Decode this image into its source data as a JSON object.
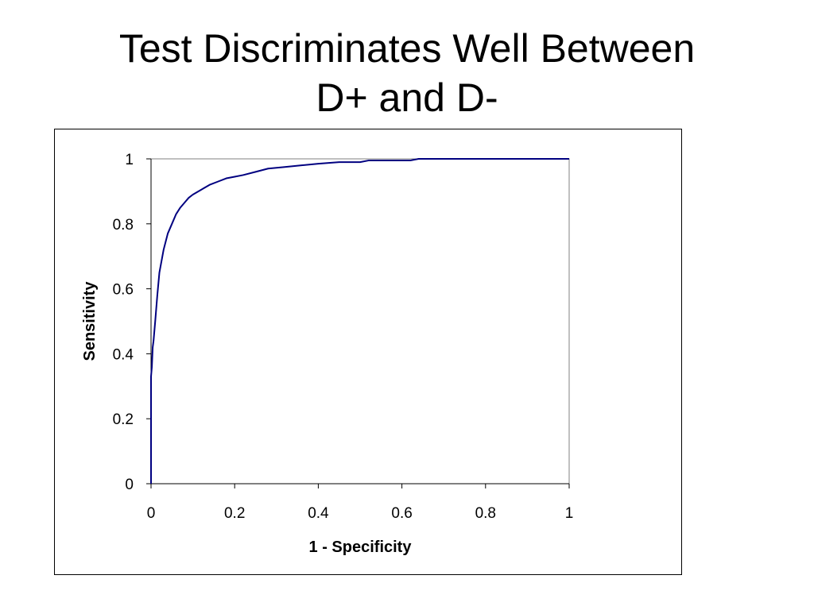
{
  "slide": {
    "title_line1": "Test Discriminates Well Between",
    "title_line2": "D+ and D-"
  },
  "chart_data": {
    "type": "line",
    "title": "",
    "xlabel": "1 - Specificity",
    "ylabel": "Sensitivity",
    "xlim": [
      0,
      1
    ],
    "ylim": [
      0,
      1
    ],
    "x_ticks": [
      "0",
      "0.2",
      "0.4",
      "0.6",
      "0.8",
      "1"
    ],
    "y_ticks": [
      "0",
      "0.2",
      "0.4",
      "0.6",
      "0.8",
      "1"
    ],
    "grid": false,
    "legend": "none",
    "series": [
      {
        "color": "#000080",
        "x": [
          0,
          0,
          0.002,
          0.004,
          0.006,
          0.01,
          0.015,
          0.02,
          0.03,
          0.04,
          0.05,
          0.06,
          0.07,
          0.08,
          0.09,
          0.1,
          0.12,
          0.14,
          0.16,
          0.18,
          0.2,
          0.22,
          0.25,
          0.28,
          0.32,
          0.36,
          0.4,
          0.45,
          0.5,
          0.52,
          0.55,
          0.6,
          0.62,
          0.64,
          0.7,
          0.8,
          0.9,
          1.0
        ],
        "y": [
          0,
          0.33,
          0.36,
          0.42,
          0.44,
          0.5,
          0.58,
          0.65,
          0.72,
          0.77,
          0.8,
          0.83,
          0.85,
          0.865,
          0.88,
          0.89,
          0.905,
          0.92,
          0.93,
          0.94,
          0.945,
          0.95,
          0.96,
          0.97,
          0.975,
          0.98,
          0.985,
          0.99,
          0.99,
          0.995,
          0.995,
          0.995,
          0.995,
          1.0,
          1.0,
          1.0,
          1.0,
          1.0
        ]
      }
    ]
  }
}
